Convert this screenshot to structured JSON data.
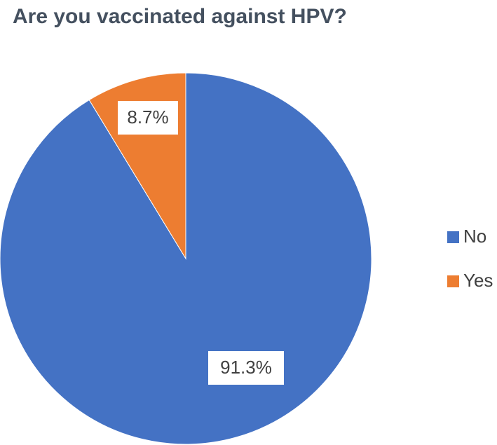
{
  "chart_data": {
    "type": "pie",
    "title": "Are you vaccinated against HPV?",
    "categories": [
      "No",
      "Yes"
    ],
    "values": [
      91.3,
      8.7
    ],
    "value_labels": [
      "91.3%",
      "8.7%"
    ],
    "colors": [
      "#4472c4",
      "#ed7d31"
    ],
    "legend": "right"
  }
}
